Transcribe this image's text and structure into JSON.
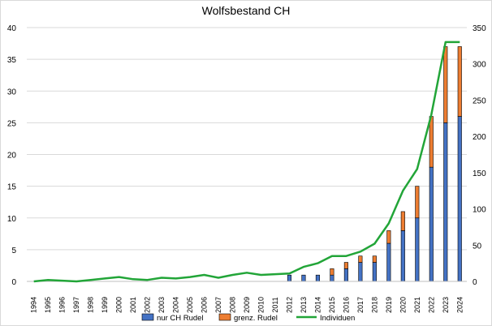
{
  "chart_data": {
    "type": "bar",
    "subtype": "stacked-bar-with-line-secondary-axis",
    "title": "Wolfsbestand CH",
    "categories": [
      "1994",
      "1995",
      "1996",
      "1997",
      "1998",
      "1999",
      "2000",
      "2001",
      "2002",
      "2003",
      "2004",
      "2005",
      "2006",
      "2007",
      "2008",
      "2009",
      "2010",
      "2011",
      "2012",
      "2013",
      "2014",
      "2015",
      "2016",
      "2017",
      "2018",
      "2019",
      "2020",
      "2021",
      "2022",
      "2023",
      "2024"
    ],
    "series": [
      {
        "name": "nur CH Rudel",
        "type": "bar",
        "axis": "left",
        "color": "#4472C4",
        "values": [
          0,
          0,
          0,
          0,
          0,
          0,
          0,
          0,
          0,
          0,
          0,
          0,
          0,
          0,
          0,
          0,
          0,
          0,
          1,
          1,
          1,
          1,
          2,
          3,
          3,
          6,
          8,
          10,
          18,
          25,
          26
        ]
      },
      {
        "name": "grenz. Rudel",
        "type": "bar",
        "axis": "left",
        "color": "#ED7D31",
        "values": [
          0,
          0,
          0,
          0,
          0,
          0,
          0,
          0,
          0,
          0,
          0,
          0,
          0,
          0,
          0,
          0,
          0,
          0,
          0,
          0,
          0,
          1,
          1,
          1,
          1,
          2,
          3,
          5,
          8,
          12,
          11
        ]
      },
      {
        "name": "Individuen",
        "type": "line",
        "axis": "right",
        "color": "#22A538",
        "values": [
          0,
          2,
          1,
          0,
          2,
          4,
          6,
          3,
          2,
          5,
          4,
          6,
          9,
          5,
          9,
          12,
          9,
          10,
          11,
          20,
          25,
          35,
          35,
          41,
          52,
          80,
          125,
          155,
          230,
          330,
          330
        ]
      }
    ],
    "y_left": {
      "min": 0,
      "max": 40,
      "ticks": [
        0,
        5,
        10,
        15,
        20,
        25,
        30,
        35,
        40
      ]
    },
    "y_right": {
      "min": 0,
      "max": 350,
      "ticks": [
        0,
        50,
        100,
        150,
        200,
        250,
        300,
        350
      ]
    },
    "grid": true,
    "legend_position": "bottom"
  }
}
